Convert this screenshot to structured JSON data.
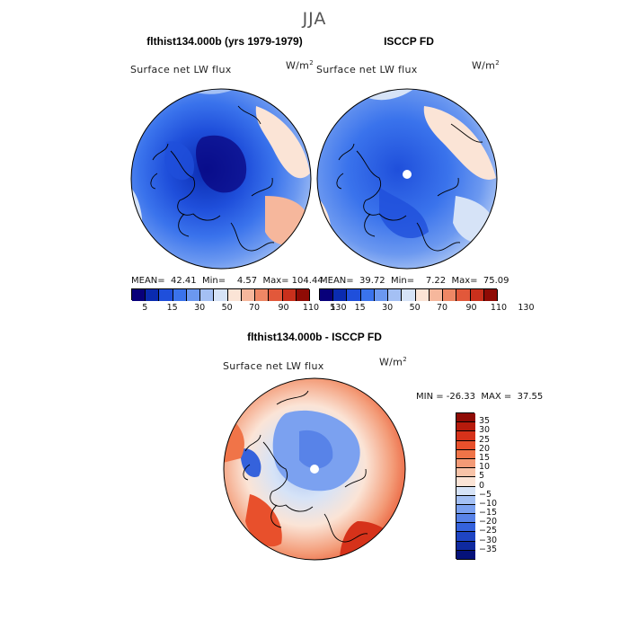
{
  "season": "JJA",
  "panels": {
    "left": {
      "title": "flthist134.000b (yrs 1979-1979)",
      "variable": "Surface net LW flux",
      "units_base": "W/m",
      "units_exp": "2",
      "stats": "MEAN=  42.41  Min=    4.57  Max= 104.44"
    },
    "right": {
      "title": "ISCCP FD",
      "variable": "Surface net LW flux",
      "units_base": "W/m",
      "units_exp": "2",
      "stats": "MEAN=  39.72  Min=    7.22  Max=  75.09"
    },
    "diff": {
      "title": "flthist134.000b - ISCCP FD",
      "variable": "Surface net LW flux",
      "units_base": "W/m",
      "units_exp": "2",
      "minmax": "MIN = -26.33  MAX =  37.55"
    }
  },
  "colorbar_top": {
    "ticks": [
      "5",
      "15",
      "30",
      "50",
      "70",
      "90",
      "110",
      "130"
    ],
    "colors": [
      "#08007a",
      "#0a2bb0",
      "#1f4fdb",
      "#3a73ec",
      "#6b98f0",
      "#a4c0f4",
      "#d6e3f7",
      "#fbe4d6",
      "#f6b79c",
      "#ee8765",
      "#e2583a",
      "#c9301c",
      "#8f0b05"
    ]
  },
  "colorbar_diff": {
    "ticks": [
      "35",
      "30",
      "25",
      "20",
      "15",
      "10",
      "5",
      "0",
      "−5",
      "−10",
      "−15",
      "−20",
      "−25",
      "−30",
      "−35"
    ],
    "colors": [
      "#8f0b05",
      "#b71b0c",
      "#d6321a",
      "#e8502c",
      "#f07448",
      "#f39a76",
      "#f8c3a8",
      "#fbe4d6",
      "#d6e3f7",
      "#a4c0f4",
      "#7ba1f0",
      "#5883e8",
      "#3562dc",
      "#1f45c4",
      "#0f2aa0",
      "#05127a"
    ]
  }
}
